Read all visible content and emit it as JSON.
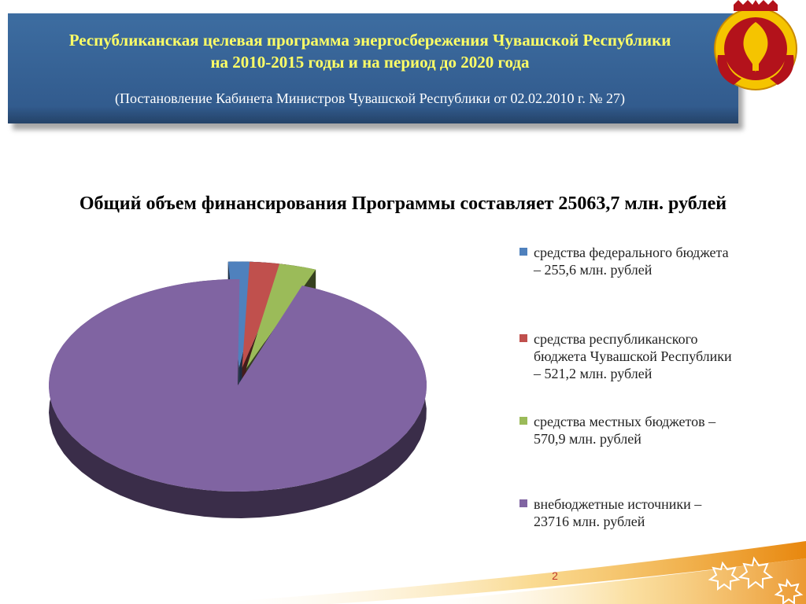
{
  "header": {
    "title_line1": "Республиканская целевая программа энергосбережения Чувашской Республики",
    "title_line2": "на 2010-2015 годы и на период до 2020 года",
    "subtitle": "(Постановление Кабинета Министров Чувашской Республики от 02.02.2010 г. № 27)"
  },
  "main": {
    "subtitle": "Общий объем финансирования Программы составляет 25063,7 млн. рублей"
  },
  "chart_data": {
    "type": "pie",
    "title": "",
    "series": [
      {
        "name": "средства федерального бюджета",
        "value": 255.6,
        "label_line1": "средства федерального бюджета",
        "label_line2": "– 255,6 млн. рублей",
        "color": "#4f81bd"
      },
      {
        "name": "средства республиканского бюджета Чувашской Республики",
        "value": 521.2,
        "label_line1": "средства республиканского",
        "label_line2": "бюджета Чувашской Республики",
        "label_line3": "– 521,2 млн. рублей",
        "color": "#c0504d"
      },
      {
        "name": "средства местных бюджетов",
        "value": 570.9,
        "label_line1": "средства местных бюджетов –",
        "label_line2": "570,9 млн. рублей",
        "color": "#9bbb59"
      },
      {
        "name": "внебюджетные источники",
        "value": 23716,
        "label_line1": "внебюджетные источники –",
        "label_line2": "23716  млн. рублей",
        "color": "#8064a2"
      }
    ],
    "legend_position": "right",
    "exploded": true,
    "three_d": true
  },
  "footer": {
    "page_number": "2"
  },
  "colors": {
    "header_bg": "#3a6699",
    "title_color": "#ffff66",
    "accent_orange": "#f39c12"
  }
}
